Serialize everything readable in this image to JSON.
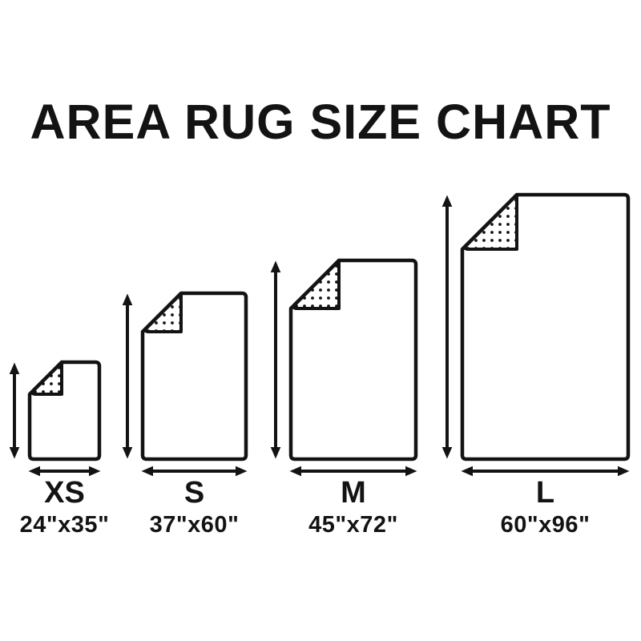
{
  "title": "AREA RUG SIZE CHART",
  "colors": {
    "ink": "#131313",
    "background": "#ffffff",
    "rug_fill": "#ffffff"
  },
  "chart_data": {
    "type": "diagram",
    "subtype": "size-comparison-chart",
    "title": "AREA RUG SIZE CHART",
    "unit": "inches",
    "categories": [
      "XS",
      "S",
      "M",
      "L"
    ],
    "sizes": [
      {
        "label": "XS",
        "dimensions": "24\"x35\"",
        "width_in": 24,
        "height_in": 35
      },
      {
        "label": "S",
        "dimensions": "37\"x60\"",
        "width_in": 37,
        "height_in": 60
      },
      {
        "label": "M",
        "dimensions": "45\"x72\"",
        "width_in": 45,
        "height_in": 72
      },
      {
        "label": "L",
        "dimensions": "60\"x96\"",
        "width_in": 60,
        "height_in": 96
      }
    ],
    "notes": "Each rug drawn to scale, bottom-aligned, with folded dotted corner at top-left, a vertical double arrow indicating height and a horizontal double arrow indicating width."
  }
}
